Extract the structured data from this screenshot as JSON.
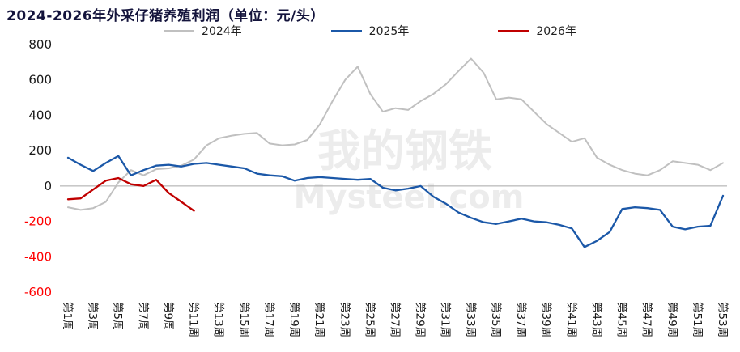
{
  "title": "2024-2026年外采仔猪养殖利润（单位：元/头）",
  "colors": {
    "title": "#14143c",
    "axis_line": "#a6a6a6",
    "tick_positive": "#1a1a1a",
    "tick_negative": "#ff0000",
    "x_label": "#1a1a1a",
    "watermark": "#ececec"
  },
  "legend": {
    "items": [
      {
        "label": "2024年",
        "color": "#c0c0c0"
      },
      {
        "label": "2025年",
        "color": "#1b58a8"
      },
      {
        "label": "2026年",
        "color": "#c00000"
      }
    ]
  },
  "watermark": {
    "line1": "我的钢铁",
    "line2": "Mysteel.com"
  },
  "chart_data": {
    "type": "line",
    "title": "2024-2026年外采仔猪养殖利润（单位：元/头）",
    "xlabel": "",
    "ylabel": "",
    "weeks": 53,
    "ylim": [
      -600,
      800
    ],
    "y_ticks": [
      800,
      600,
      400,
      200,
      0,
      -200,
      -400,
      -600
    ],
    "grid": false,
    "legend_position": "top",
    "x_tick_labels": [
      "第1周",
      "第3周",
      "第5周",
      "第7周",
      "第9周",
      "第11周",
      "第13周",
      "第15周",
      "第17周",
      "第19周",
      "第21周",
      "第23周",
      "第25周",
      "第27周",
      "第29周",
      "第31周",
      "第33周",
      "第35周",
      "第37周",
      "第39周",
      "第41周",
      "第43周",
      "第45周",
      "第47周",
      "第49周",
      "第51周",
      "第53周"
    ],
    "series": [
      {
        "name": "2024年",
        "color": "#c0c0c0",
        "width": 2,
        "values": [
          -120,
          -135,
          -125,
          -90,
          20,
          90,
          60,
          95,
          100,
          115,
          150,
          230,
          270,
          285,
          295,
          300,
          240,
          230,
          235,
          260,
          350,
          480,
          600,
          675,
          520,
          420,
          440,
          430,
          480,
          520,
          575,
          650,
          720,
          640,
          490,
          500,
          490,
          420,
          350,
          300,
          250,
          270,
          160,
          120,
          90,
          70,
          60,
          90,
          140,
          130,
          120,
          90,
          130
        ]
      },
      {
        "name": "2025年",
        "color": "#1b58a8",
        "width": 2.3,
        "values": [
          160,
          120,
          85,
          130,
          170,
          60,
          90,
          115,
          120,
          110,
          125,
          130,
          120,
          110,
          100,
          70,
          60,
          55,
          30,
          45,
          50,
          45,
          40,
          35,
          40,
          -10,
          -25,
          -15,
          0,
          -60,
          -100,
          -150,
          -180,
          -205,
          -215,
          -200,
          -185,
          -200,
          -205,
          -220,
          -240,
          -345,
          -310,
          -260,
          -130,
          -120,
          -125,
          -135,
          -230,
          -245,
          -230,
          -225,
          -55
        ]
      },
      {
        "name": "2026年",
        "color": "#c00000",
        "width": 2.3,
        "values": [
          -75,
          -70,
          -20,
          30,
          45,
          10,
          0,
          35,
          -40,
          -90,
          -140
        ]
      }
    ]
  }
}
